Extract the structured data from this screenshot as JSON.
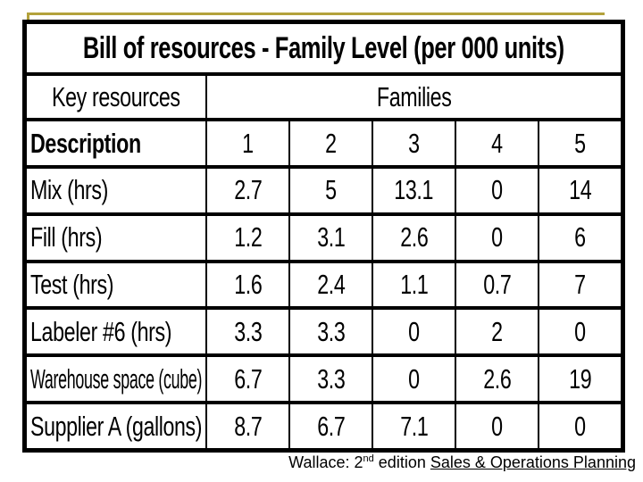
{
  "frame": {
    "accent_color": "#b3a23c",
    "table_border_color": "#000000",
    "background_color": "#ffffff"
  },
  "table": {
    "title": "Bill of resources - Family Level (per 000 units)",
    "header": {
      "key_resources": "Key resources",
      "families": "Families"
    },
    "description_label": "Description",
    "family_columns": [
      "1",
      "2",
      "3",
      "4",
      "5"
    ],
    "rows": [
      {
        "label": "Mix (hrs)",
        "values": [
          "2.7",
          "5",
          "13.1",
          "0",
          "14"
        ]
      },
      {
        "label": "Fill (hrs)",
        "values": [
          "1.2",
          "3.1",
          "2.6",
          "0",
          "6"
        ]
      },
      {
        "label": "Test (hrs)",
        "values": [
          "1.6",
          "2.4",
          "1.1",
          "0.7",
          "7"
        ]
      },
      {
        "label": "Labeler #6 (hrs)",
        "values": [
          "3.3",
          "3.3",
          "0",
          "2",
          "0"
        ]
      },
      {
        "label": "Warehouse space (cube)",
        "values": [
          "6.7",
          "3.3",
          "0",
          "2.6",
          "19"
        ]
      },
      {
        "label": "Supplier A (gallons)",
        "values": [
          "8.7",
          "6.7",
          "7.1",
          "0",
          "0"
        ]
      }
    ]
  },
  "footer": {
    "prefix": "Wallace: 2",
    "superscript": "nd",
    "middle": " edition ",
    "underlined": "Sales & Operations Planning"
  }
}
